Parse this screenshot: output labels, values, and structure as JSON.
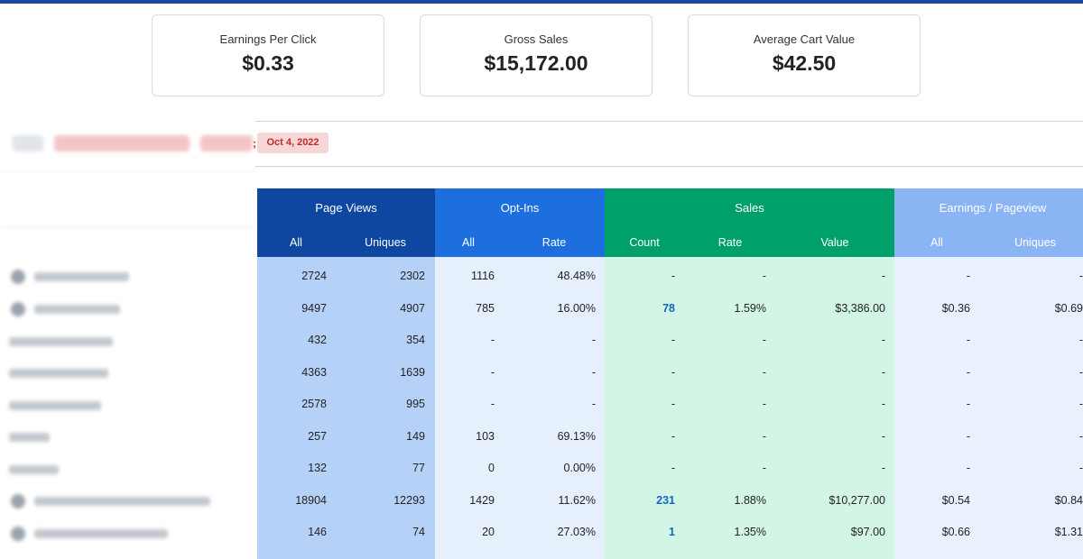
{
  "cards": [
    {
      "label": "Earnings Per Click",
      "value": "$0.33"
    },
    {
      "label": "Gross Sales",
      "value": "$15,172.00"
    },
    {
      "label": "Average Cart Value",
      "value": "$42.50"
    }
  ],
  "filter": {
    "date": "Oct 4, 2022",
    "separator": ";"
  },
  "colors": {
    "pageviews_header": "#0d47a1",
    "pageviews_body": "#b6d1f8",
    "optins_header": "#1d6fe0",
    "optins_body": "#e6f0fc",
    "sales_header": "#00a06a",
    "sales_body": "#d2f5e6",
    "earnings_header": "#8bb4f5",
    "earnings_body": "#e8f1fd",
    "top_bar": "#1a4a9c"
  },
  "table": {
    "groups": [
      "Page Views",
      "Opt-Ins",
      "Sales",
      "Earnings / Pageview"
    ],
    "subheaders": [
      "All",
      "Uniques",
      "All",
      "Rate",
      "Count",
      "Rate",
      "Value",
      "All",
      "Uniques"
    ],
    "rows": [
      [
        "2724",
        "2302",
        "1116",
        "48.48%",
        "-",
        "-",
        "-",
        "-",
        "-"
      ],
      [
        "9497",
        "4907",
        "785",
        "16.00%",
        "78",
        "1.59%",
        "$3,386.00",
        "$0.36",
        "$0.69"
      ],
      [
        "432",
        "354",
        "-",
        "-",
        "-",
        "-",
        "-",
        "-",
        "-"
      ],
      [
        "4363",
        "1639",
        "-",
        "-",
        "-",
        "-",
        "-",
        "-",
        "-"
      ],
      [
        "2578",
        "995",
        "-",
        "-",
        "-",
        "-",
        "-",
        "-",
        "-"
      ],
      [
        "257",
        "149",
        "103",
        "69.13%",
        "-",
        "-",
        "-",
        "-",
        "-"
      ],
      [
        "132",
        "77",
        "0",
        "0.00%",
        "-",
        "-",
        "-",
        "-",
        "-"
      ],
      [
        "18904",
        "12293",
        "1429",
        "11.62%",
        "231",
        "1.88%",
        "$10,277.00",
        "$0.54",
        "$0.84"
      ],
      [
        "146",
        "74",
        "20",
        "27.03%",
        "1",
        "1.35%",
        "$97.00",
        "$0.66",
        "$1.31"
      ]
    ]
  }
}
